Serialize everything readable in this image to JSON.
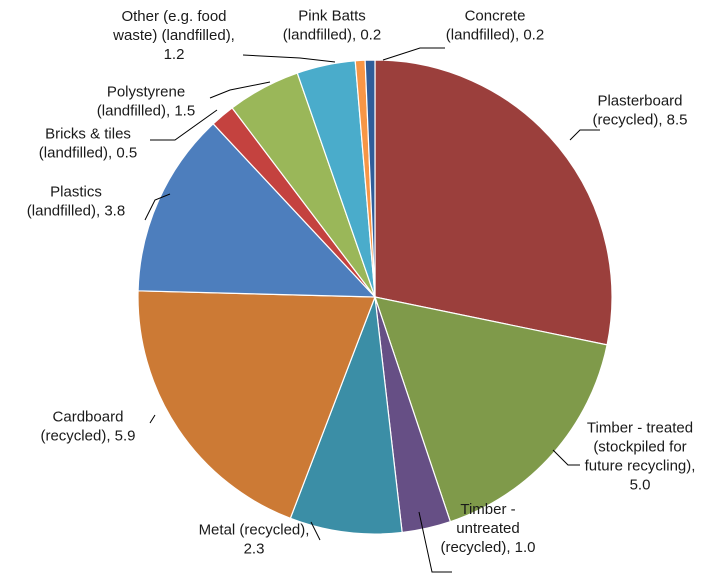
{
  "chart_data": {
    "type": "pie",
    "title": "",
    "start": "12 o'clock",
    "direction": "clockwise",
    "slices": [
      {
        "label_lines": [
          "Plasterboard",
          "(recycled), 8.5"
        ],
        "value": 8.5,
        "color": "#9b3f3c"
      },
      {
        "label_lines": [
          "Timber - treated",
          "(stockpiled  for",
          "future recycling),",
          "5.0"
        ],
        "value": 5.0,
        "color": "#7f9a4a"
      },
      {
        "label_lines": [
          "Timber -",
          "untreated",
          "(recycled), 1.0"
        ],
        "value": 1.0,
        "color": "#664f85"
      },
      {
        "label_lines": [
          "Metal (recycled),",
          "2.3"
        ],
        "value": 2.3,
        "color": "#3b8ea6"
      },
      {
        "label_lines": [
          "Cardboard",
          "(recycled), 5.9"
        ],
        "value": 5.9,
        "color": "#cc7a35"
      },
      {
        "label_lines": [
          "Plastics",
          "(landfilled), 3.8"
        ],
        "value": 3.8,
        "color": "#4d7ebd"
      },
      {
        "label_lines": [
          "Bricks & tiles",
          "(landfilled), 0.5"
        ],
        "value": 0.5,
        "color": "#c4423f"
      },
      {
        "label_lines": [
          "Polystyrene",
          "(landfilled), 1.5"
        ],
        "value": 1.5,
        "color": "#9ab759"
      },
      {
        "label_lines": [
          "Other (e.g. food",
          "waste) (landfilled),",
          "1.2"
        ],
        "value": 1.2,
        "color": "#4aaccb"
      },
      {
        "label_lines": [
          "Pink Batts",
          "(landfilled), 0.2"
        ],
        "value": 0.2,
        "color": "#f79646"
      },
      {
        "label_lines": [
          "Concrete",
          "(landfilled), 0.2"
        ],
        "value": 0.2,
        "color": "#2f5d99"
      }
    ]
  }
}
